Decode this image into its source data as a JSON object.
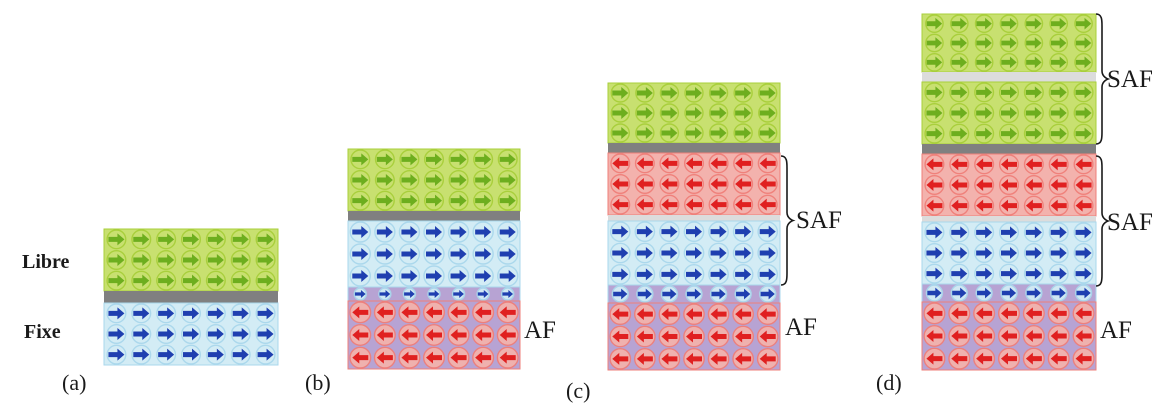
{
  "labels": {
    "libre": "Libre",
    "fixe": "Fixe",
    "af": "AF",
    "saf": "SAF"
  },
  "panels": [
    "(a)",
    "(b)",
    "(c)",
    "(d)"
  ],
  "colors": {
    "ferro_fill": "#c8e070",
    "ferro_circle": "#a8cf3a",
    "ferro_arrow": "#6dae1e",
    "pinned_fill": "#d3ecf5",
    "pinned_circle": "#a9d7ec",
    "pinned_arrow": "#1f3fb0",
    "anti_fill": "#f3b2ad",
    "anti_circle": "#ef7f79",
    "anti_arrow": "#e02020",
    "af_base": "#b7a3d3",
    "spacer": "#808080",
    "saf_gap": "#dcdcdc"
  },
  "legend": {
    "ferro_arrow_direction": "right",
    "anti_arrow_direction": "left"
  }
}
